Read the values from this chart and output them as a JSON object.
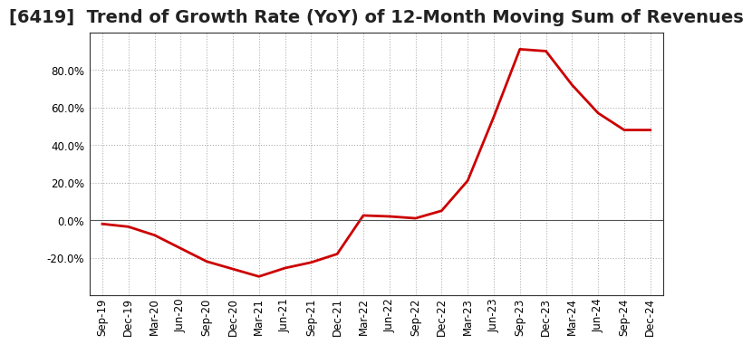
{
  "title": "[6419]  Trend of Growth Rate (YoY) of 12-Month Moving Sum of Revenues",
  "x_labels": [
    "Sep-19",
    "Dec-19",
    "Mar-20",
    "Jun-20",
    "Sep-20",
    "Dec-20",
    "Mar-21",
    "Jun-21",
    "Sep-21",
    "Dec-21",
    "Mar-22",
    "Jun-22",
    "Sep-22",
    "Dec-22",
    "Mar-23",
    "Jun-23",
    "Sep-23",
    "Dec-23",
    "Mar-24",
    "Jun-24",
    "Sep-24",
    "Dec-24"
  ],
  "y_values": [
    -2.0,
    -3.5,
    -8.0,
    -15.0,
    -22.0,
    -26.0,
    -30.0,
    -25.5,
    -22.5,
    -18.0,
    2.5,
    2.0,
    1.0,
    5.0,
    21.0,
    55.0,
    91.0,
    90.0,
    72.0,
    57.0,
    48.0,
    48.0
  ],
  "line_color": "#cc0000",
  "line_width": 2.0,
  "bg_color": "#ffffff",
  "plot_bg_color": "#ffffff",
  "grid_color": "#b0b0b0",
  "ylim": [
    -40,
    100
  ],
  "yticks": [
    -20.0,
    0.0,
    20.0,
    40.0,
    60.0,
    80.0
  ],
  "title_fontsize": 14,
  "tick_fontsize": 8.5
}
